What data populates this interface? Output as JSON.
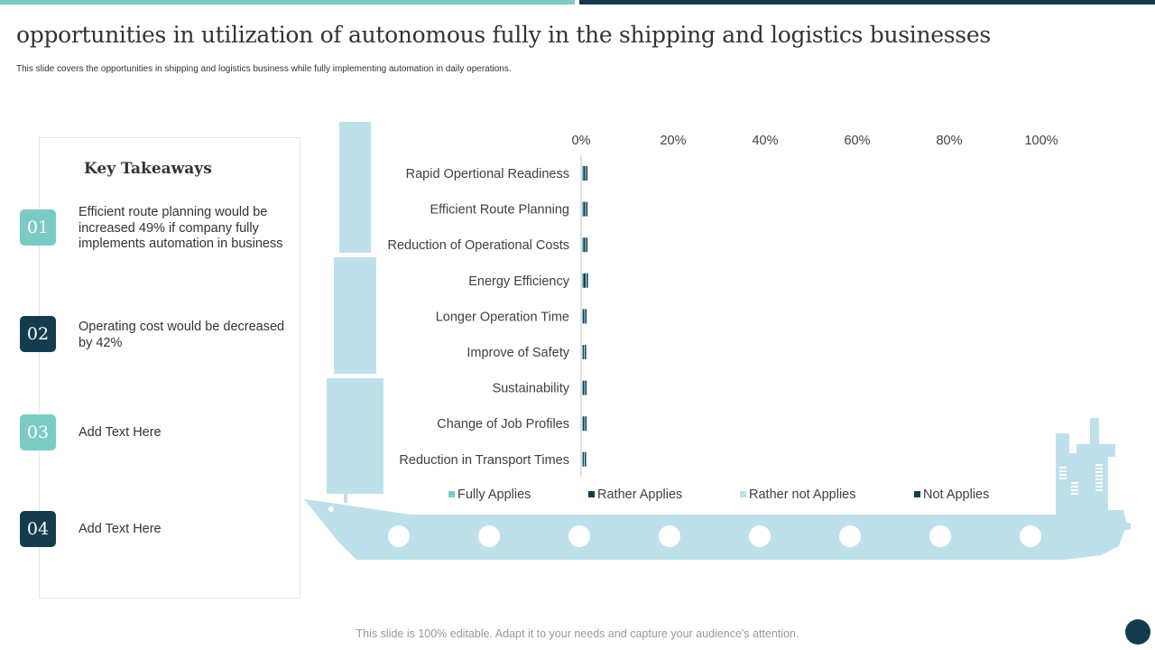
{
  "header": {
    "title": "opportunities in utilization of autonomous fully in the shipping and logistics businesses",
    "subtitle": "This slide covers the opportunities in shipping and logistics business while fully implementing  automation in daily operations."
  },
  "takeaways": {
    "heading": "Key Takeaways",
    "items": [
      {
        "num": "01",
        "text": "Efficient route planning would be increased 49% if company fully implements automation in business",
        "color": "#7ccac4"
      },
      {
        "num": "02",
        "text": "Operating cost would be decreased by 42%",
        "color": "#153c4e"
      },
      {
        "num": "03",
        "text": "Add Text Here",
        "color": "#7ccac4"
      },
      {
        "num": "04",
        "text": "Add Text Here",
        "color": "#153c4e"
      }
    ]
  },
  "footer": "This slide is 100% editable. Adapt it to your needs and capture your audience's attention.",
  "colors": {
    "teal": "#7ccac4",
    "dark": "#153c4e",
    "light": "#bee0eb"
  },
  "chart_data": {
    "type": "bar",
    "orientation": "horizontal",
    "stacked": true,
    "categories": [
      "Rapid Opertional Readiness",
      "Efficient Route Planning",
      "Reduction of Operational Costs",
      "Energy Efficiency",
      "Longer Operation Time",
      "Improve of Safety",
      "Sustainability",
      "Change of Job Profiles",
      "Reduction in Transport Times"
    ],
    "xticks": [
      "0%",
      "20%",
      "40%",
      "60%",
      "80%",
      "100%"
    ],
    "xlim": [
      0,
      100
    ],
    "legend": "bottom",
    "series": [
      {
        "name": "Fully Applies",
        "color": "#7ccac4",
        "values": [
          0.3,
          0.3,
          0.3,
          0.3,
          0.2,
          0.2,
          0.2,
          0.2,
          0.2
        ]
      },
      {
        "name": "Rather Applies",
        "color": "#153c4e",
        "values": [
          0.4,
          0.4,
          0.4,
          0.5,
          0.3,
          0.2,
          0.3,
          0.3,
          0.2
        ]
      },
      {
        "name": "Rather not Applies",
        "color": "#bee0eb",
        "values": [
          0.2,
          0.2,
          0.2,
          0.2,
          0.2,
          0.2,
          0.2,
          0.2,
          0.2
        ]
      },
      {
        "name": "Not Applies",
        "color": "#153c4e",
        "values": [
          0.2,
          0.2,
          0.2,
          0.2,
          0.2,
          0.2,
          0.2,
          0.2,
          0.2
        ]
      }
    ]
  }
}
